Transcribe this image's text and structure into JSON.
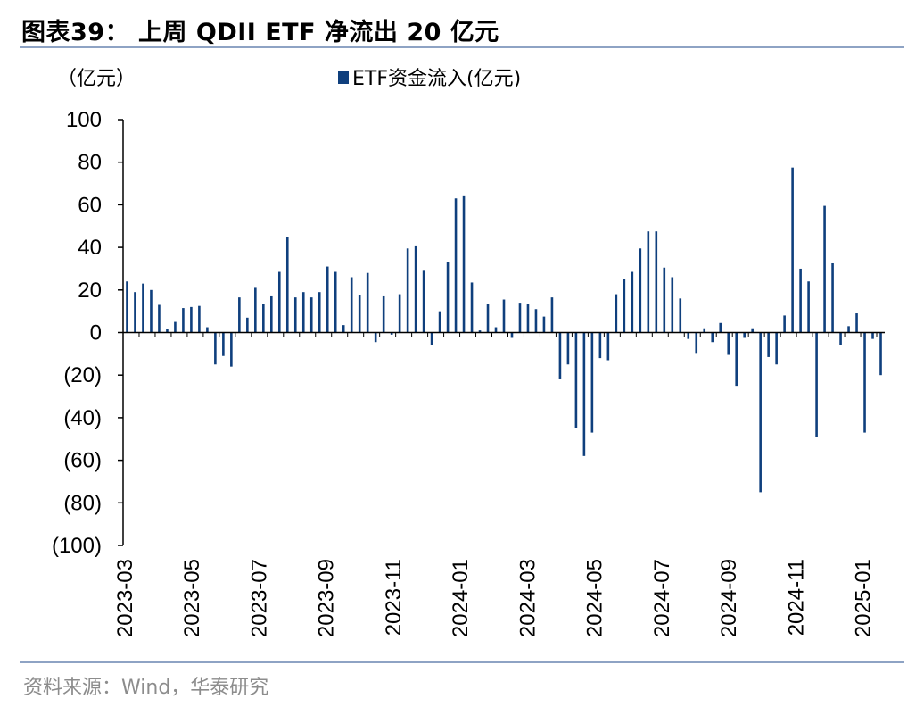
{
  "header": {
    "title": "图表39：  上周 QDII ETF 净流出 20 亿元"
  },
  "footer": {
    "source": "资料来源：Wind，华泰研究"
  },
  "colors": {
    "bar": "#0f3f7d",
    "axis": "#000000",
    "rule": "#8ea3c4"
  },
  "chart_data": {
    "type": "bar",
    "title": "上周 QDII ETF 净流出 20 亿元",
    "ylabel": "（亿元）",
    "xlabel": "",
    "ylim": [
      -100,
      100
    ],
    "yticks": [
      100,
      80,
      60,
      40,
      20,
      0,
      -20,
      -40,
      -60,
      -80,
      -100
    ],
    "ytick_labels": [
      "100",
      "80",
      "60",
      "40",
      "20",
      "0",
      "(20)",
      "(40)",
      "(60)",
      "(80)",
      "(100)"
    ],
    "x_tick_labels": [
      "2023-03",
      "2023-05",
      "2023-07",
      "2023-09",
      "2023-11",
      "2024-01",
      "2024-03",
      "2024-05",
      "2024-07",
      "2024-09",
      "2024-11",
      "2025-01"
    ],
    "legend": {
      "label": "ETF资金流入(亿元)",
      "position": "top-center"
    },
    "grid": false,
    "series": [
      {
        "name": "ETF资金流入(亿元)",
        "values": [
          24,
          19,
          23,
          20,
          13,
          1.5,
          5,
          11.5,
          12,
          12.5,
          2.5,
          -15,
          -11,
          -16,
          16.5,
          7,
          21,
          13.5,
          17,
          28.5,
          45,
          16.5,
          19,
          16.5,
          19,
          31,
          28.5,
          3.5,
          26,
          17.5,
          28,
          -4.5,
          17,
          -1,
          18,
          39.5,
          40.5,
          29,
          -6,
          10,
          33,
          63,
          64,
          23.5,
          1,
          13.5,
          2.5,
          15.5,
          -2.5,
          14,
          13.5,
          11,
          7.5,
          16.5,
          -22,
          -15,
          -45,
          -58,
          -47,
          -12,
          -13,
          18,
          25,
          28.5,
          39.5,
          47.5,
          47.5,
          30.5,
          26,
          16,
          -3,
          -10,
          2,
          -4.5,
          4.5,
          -10.5,
          -25,
          -2.5,
          2,
          -75,
          -11.5,
          -15,
          8,
          77.5,
          30,
          24,
          -49,
          59.5,
          32.5,
          -6,
          3,
          9,
          -47,
          -3,
          -20
        ]
      }
    ]
  }
}
